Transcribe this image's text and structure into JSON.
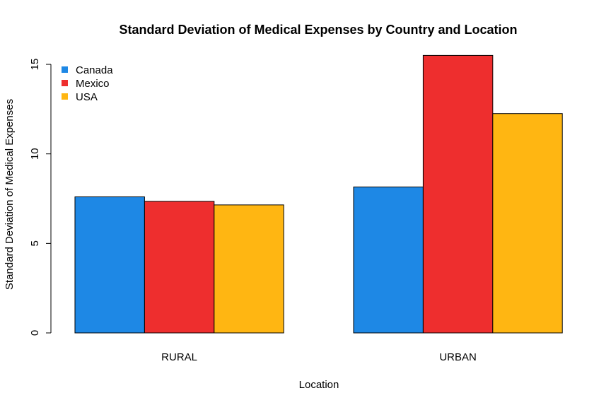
{
  "chart_data": {
    "type": "bar",
    "title": "Standard Deviation of Medical Expenses by Country and Location",
    "xlabel": "Location",
    "ylabel": "Standard Deviation of Medical Expenses",
    "categories": [
      "RURAL",
      "URBAN"
    ],
    "series": [
      {
        "name": "Canada",
        "color": "#1E88E5",
        "values": [
          7.6,
          8.15
        ]
      },
      {
        "name": "Mexico",
        "color": "#EE2E2E",
        "values": [
          7.35,
          15.5
        ]
      },
      {
        "name": "USA",
        "color": "#FFB612",
        "values": [
          7.15,
          12.25
        ]
      }
    ],
    "ylim": [
      0,
      15.5
    ],
    "yticks": [
      0,
      5,
      10,
      15
    ],
    "legend": "top-left",
    "grid": false
  }
}
